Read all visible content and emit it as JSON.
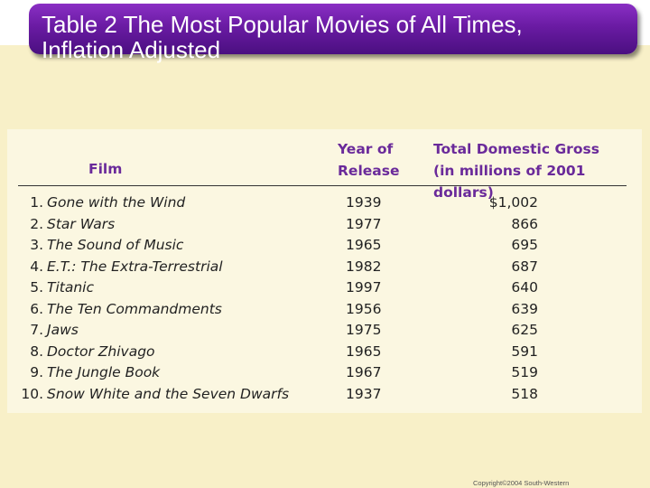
{
  "title": "Table 2 The Most Popular Movies of All Times,\nInflation Adjusted",
  "headers": {
    "film": "Film",
    "year_line1": "Year of",
    "year_line2": "Release",
    "gross_line1": "Total Domestic Gross",
    "gross_line2": "(in millions of 2001 dollars)"
  },
  "rows": [
    {
      "num": "1.",
      "film": "Gone with the Wind",
      "year": "1939",
      "gross": "$1,002"
    },
    {
      "num": "2.",
      "film": "Star Wars",
      "year": "1977",
      "gross": "866"
    },
    {
      "num": "3.",
      "film": "The Sound of Music",
      "year": "1965",
      "gross": "695"
    },
    {
      "num": "4.",
      "film": "E.T.: The Extra-Terrestrial",
      "year": "1982",
      "gross": "687"
    },
    {
      "num": "5.",
      "film": "Titanic",
      "year": "1997",
      "gross": "640"
    },
    {
      "num": "6.",
      "film": "The Ten Commandments",
      "year": "1956",
      "gross": "639"
    },
    {
      "num": "7.",
      "film": "Jaws",
      "year": "1975",
      "gross": "625"
    },
    {
      "num": "8.",
      "film": "Doctor Zhivago",
      "year": "1965",
      "gross": "591"
    },
    {
      "num": "9.",
      "film": "The Jungle Book",
      "year": "1967",
      "gross": "519"
    },
    {
      "num": "10.",
      "film": "Snow White and the Seven Dwarfs",
      "year": "1937",
      "gross": "518"
    }
  ],
  "copyright": "Copyright©2004  South-Western",
  "colors": {
    "banner": "#6a1ba3",
    "header_text": "#6a2a9a",
    "background": "#f8f0c8"
  }
}
